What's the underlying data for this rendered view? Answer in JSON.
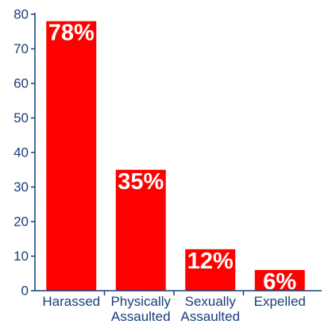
{
  "chart_data": {
    "type": "bar",
    "categories": [
      [
        "Harassed"
      ],
      [
        "Physically",
        "Assaulted"
      ],
      [
        "Sexually",
        "Assaulted"
      ],
      [
        "Expelled"
      ]
    ],
    "values": [
      78,
      35,
      12,
      6
    ],
    "data_labels": [
      "78%",
      "35%",
      "12%",
      "6%"
    ],
    "title": "",
    "xlabel": "",
    "ylabel": "",
    "ylim": [
      0,
      80
    ],
    "yticks": [
      0,
      10,
      20,
      30,
      40,
      50,
      60,
      70,
      80
    ],
    "grid": false,
    "legend": "none"
  },
  "colors": {
    "bar": "#ff0000",
    "axis": "#1a3d7a",
    "text": "#1a3d7a",
    "data_label": "#ffffff"
  }
}
